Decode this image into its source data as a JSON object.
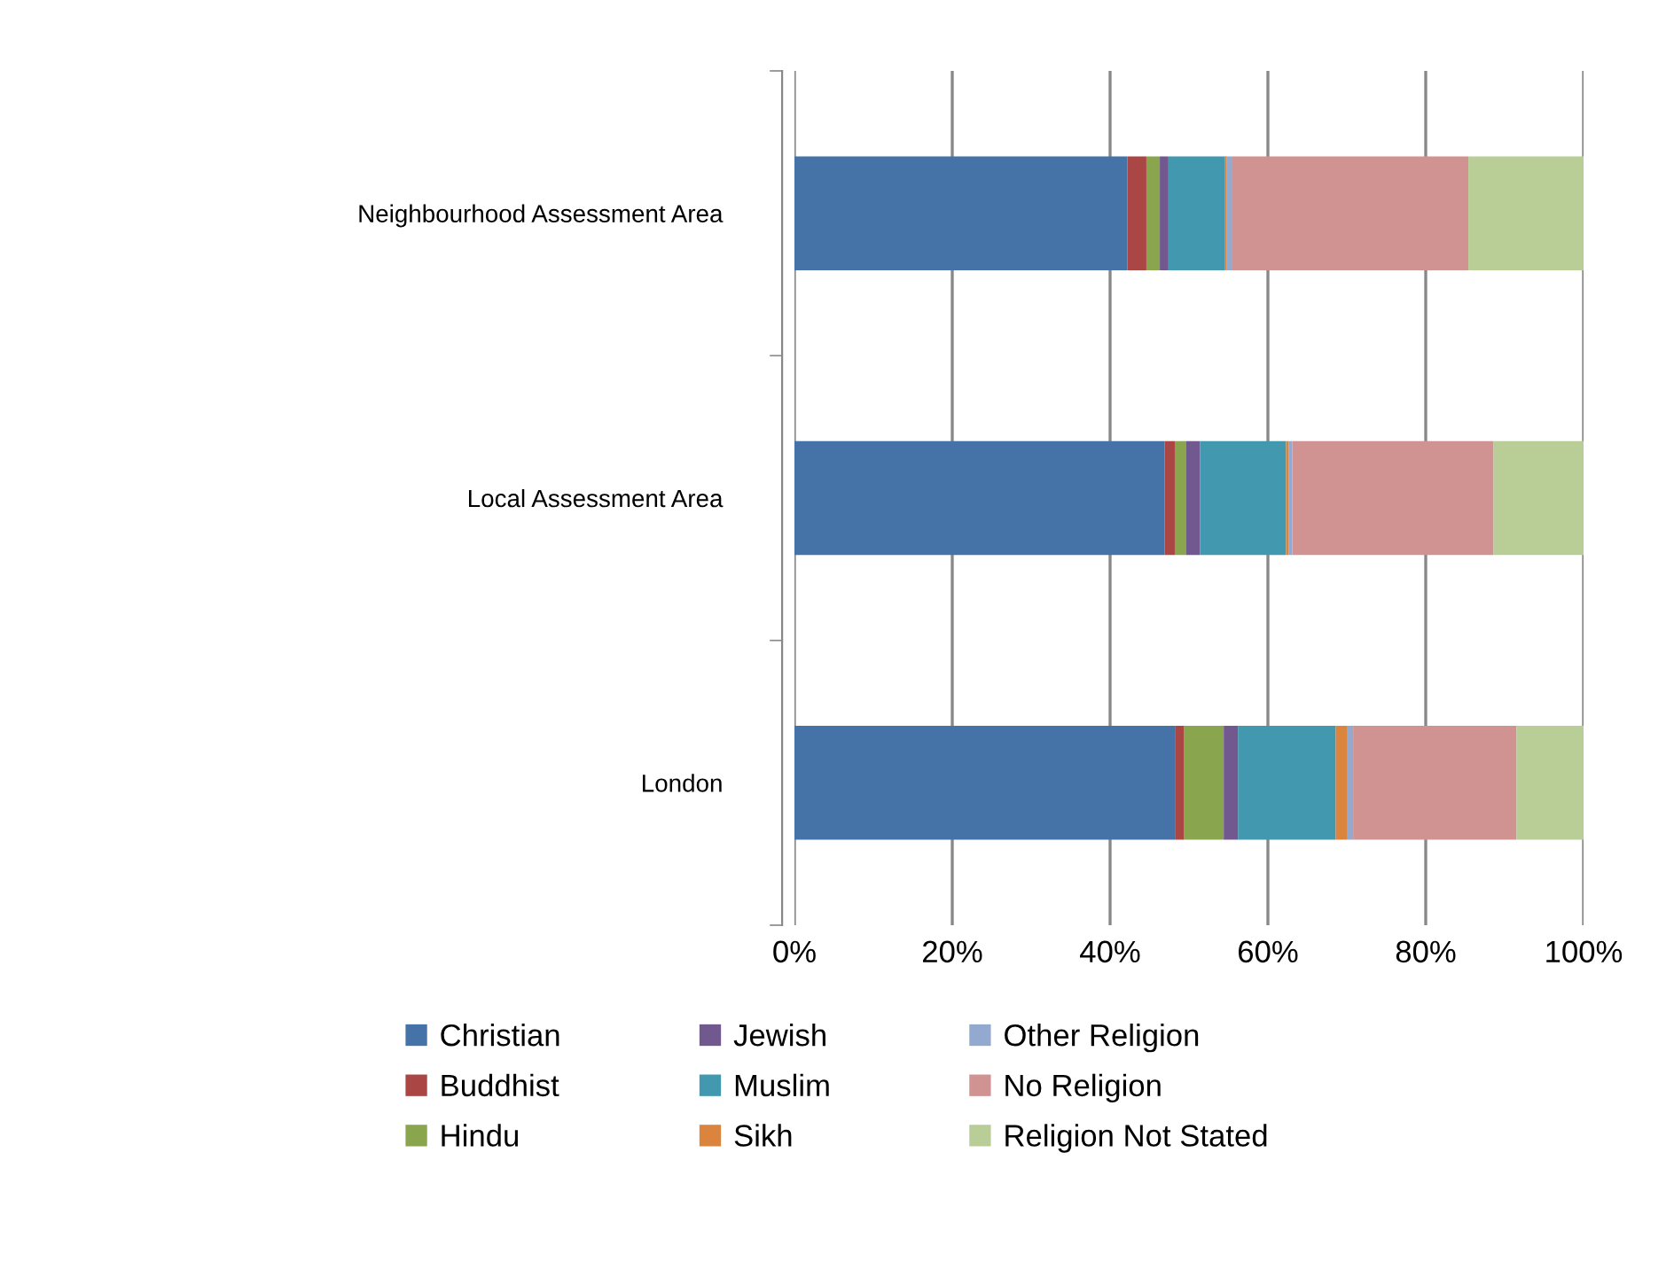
{
  "chart_data": {
    "type": "bar",
    "orientation": "horizontal",
    "stacked": true,
    "categories": [
      "Neighbourhood Assessment Area",
      "Local Assessment Area",
      "London"
    ],
    "series": [
      {
        "name": "Christian",
        "color": "#4572a7",
        "values": [
          42.2,
          46.9,
          48.3
        ]
      },
      {
        "name": "Buddhist",
        "color": "#aa4643",
        "values": [
          2.4,
          1.3,
          1.1
        ]
      },
      {
        "name": "Hindu",
        "color": "#89a54e",
        "values": [
          1.7,
          1.4,
          5.0
        ]
      },
      {
        "name": "Jewish",
        "color": "#71588f",
        "values": [
          1.1,
          1.8,
          1.8
        ]
      },
      {
        "name": "Muslim",
        "color": "#4198af",
        "values": [
          7.1,
          10.9,
          12.4
        ]
      },
      {
        "name": "Sikh",
        "color": "#db843d",
        "values": [
          0.3,
          0.3,
          1.4
        ]
      },
      {
        "name": "Other Religion",
        "color": "#93a9cf",
        "values": [
          0.6,
          0.5,
          0.8
        ]
      },
      {
        "name": "No Religion",
        "color": "#d19392",
        "values": [
          30.0,
          25.5,
          20.7
        ]
      },
      {
        "name": "Religion Not Stated",
        "color": "#b9cd96",
        "values": [
          14.6,
          11.4,
          8.5
        ]
      }
    ],
    "xlim": [
      0,
      100
    ],
    "xticks": [
      {
        "value": 0,
        "label": "0%"
      },
      {
        "value": 20,
        "label": "20%"
      },
      {
        "value": 40,
        "label": "40%"
      },
      {
        "value": 60,
        "label": "60%"
      },
      {
        "value": 80,
        "label": "80%"
      },
      {
        "value": 100,
        "label": "100%"
      }
    ],
    "grid": "x",
    "legend": "bottom"
  }
}
